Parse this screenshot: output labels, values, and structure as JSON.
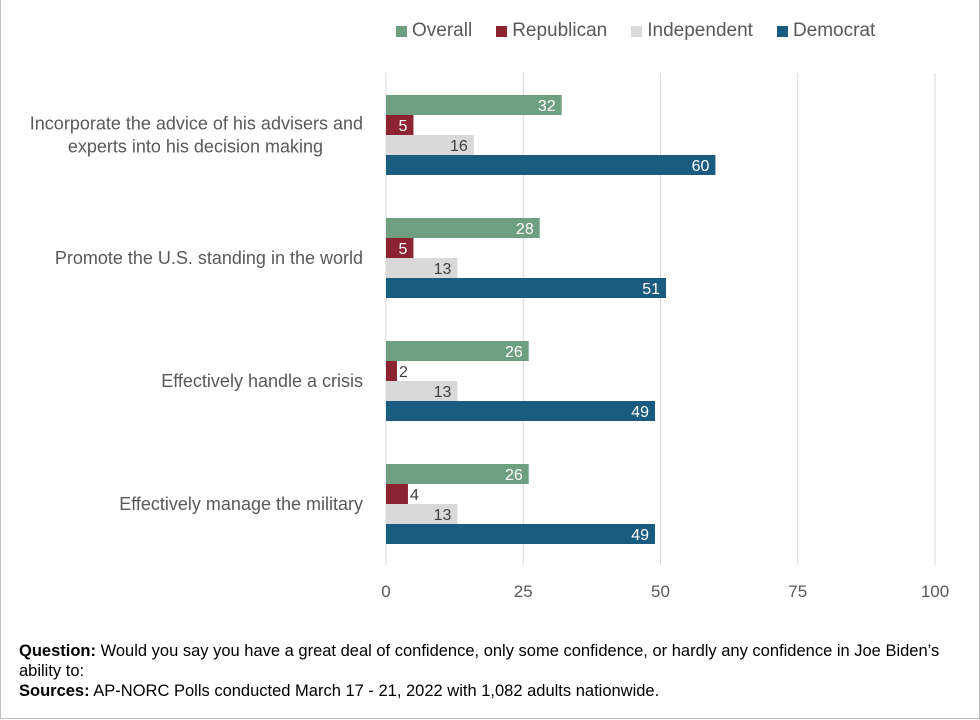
{
  "chart_data": {
    "type": "bar",
    "orientation": "horizontal",
    "categories": [
      [
        "Incorporate the advice of his advisers and",
        "experts into his decision making"
      ],
      [
        "Promote the U.S. standing in the world"
      ],
      [
        "Effectively handle a crisis"
      ],
      [
        "Effectively manage the military"
      ]
    ],
    "series": [
      {
        "name": "Overall",
        "color": "#6f9f81",
        "values": [
          32,
          28,
          26,
          26
        ]
      },
      {
        "name": "Republican",
        "color": "#8b2332",
        "values": [
          5,
          5,
          2,
          4
        ]
      },
      {
        "name": "Independent",
        "color": "#d9d9d9",
        "values": [
          16,
          13,
          13,
          13
        ]
      },
      {
        "name": "Democrat",
        "color": "#1a5c7f",
        "values": [
          60,
          51,
          49,
          49
        ]
      }
    ],
    "xlim": [
      0,
      100
    ],
    "xticks": [
      0,
      25,
      50,
      75,
      100
    ],
    "grid": true,
    "legend_position": "top",
    "data_labels": true
  },
  "notes": {
    "question_label": "Question:",
    "question_text": "Would you say you have a great deal of confidence, only some confidence, or hardly any confidence in Joe Biden’s ability to:",
    "sources_label": "Sources:",
    "sources_text": "AP-NORC Polls conducted March 17 - 21, 2022 with 1,082 adults nationwide."
  }
}
